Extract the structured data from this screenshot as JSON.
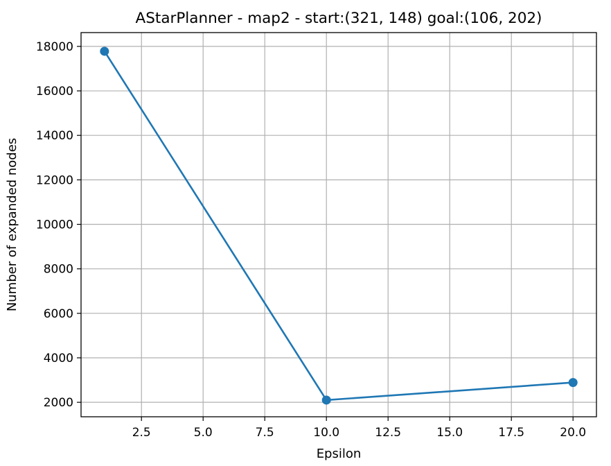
{
  "chart_data": {
    "type": "line",
    "title": "AStarPlanner - map2 - start:(321, 148) goal:(106, 202)",
    "xlabel": "Epsilon",
    "ylabel": "Number of expanded nodes",
    "x": [
      1,
      10,
      20
    ],
    "series": [
      {
        "values": [
          17780,
          2100,
          2890
        ],
        "color": "#1f77b4",
        "marker": "circle"
      }
    ],
    "xlim": [
      0.05,
      20.95
    ],
    "ylim": [
      1350,
      18620
    ],
    "xticks": [
      2.5,
      5.0,
      7.5,
      10.0,
      12.5,
      15.0,
      17.5,
      20.0
    ],
    "xtick_labels": [
      "2.5",
      "5.0",
      "7.5",
      "10.0",
      "12.5",
      "15.0",
      "17.5",
      "20.0"
    ],
    "yticks": [
      2000,
      4000,
      6000,
      8000,
      10000,
      12000,
      14000,
      16000,
      18000
    ],
    "ytick_labels": [
      "2000",
      "4000",
      "6000",
      "8000",
      "10000",
      "12000",
      "14000",
      "16000",
      "18000"
    ],
    "grid": true,
    "legend": false
  }
}
